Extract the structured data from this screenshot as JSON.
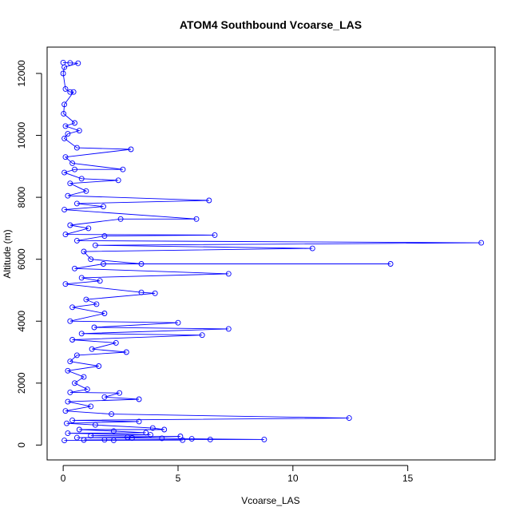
{
  "chart_data": {
    "type": "scatter",
    "title": "ATOM4 Southbound Vcoarse_LAS",
    "xlabel": "Vcoarse_LAS",
    "ylabel": "Altitude (m)",
    "xlim": [
      -0.7,
      18.8
    ],
    "ylim": [
      -480,
      12850
    ],
    "x_ticks": [
      0,
      5,
      10,
      15
    ],
    "y_ticks": [
      0,
      2000,
      4000,
      6000,
      8000,
      10000,
      12000
    ],
    "grid": false,
    "legend": "none",
    "color": "#0000ff",
    "series": [
      {
        "points": [
          [
            0.0,
            12350
          ],
          [
            0.3,
            12340
          ],
          [
            0.65,
            12330
          ],
          [
            0.05,
            12200
          ],
          [
            0.0,
            12000
          ],
          [
            0.1,
            11500
          ],
          [
            0.3,
            11400
          ],
          [
            0.45,
            11400
          ],
          [
            0.05,
            11000
          ],
          [
            0.02,
            10700
          ],
          [
            0.5,
            10400
          ],
          [
            0.1,
            10300
          ],
          [
            0.7,
            10150
          ],
          [
            0.2,
            10050
          ],
          [
            0.05,
            9900
          ],
          [
            0.6,
            9600
          ],
          [
            2.95,
            9550
          ],
          [
            0.1,
            9300
          ],
          [
            0.4,
            9100
          ],
          [
            2.6,
            8900
          ],
          [
            0.5,
            8900
          ],
          [
            0.05,
            8800
          ],
          [
            0.8,
            8600
          ],
          [
            2.4,
            8550
          ],
          [
            0.3,
            8450
          ],
          [
            1.0,
            8200
          ],
          [
            0.2,
            8050
          ],
          [
            6.35,
            7900
          ],
          [
            0.6,
            7800
          ],
          [
            1.75,
            7700
          ],
          [
            0.05,
            7600
          ],
          [
            5.8,
            7300
          ],
          [
            2.5,
            7300
          ],
          [
            0.3,
            7100
          ],
          [
            1.1,
            7000
          ],
          [
            0.1,
            6800
          ],
          [
            6.6,
            6780
          ],
          [
            1.8,
            6750
          ],
          [
            0.6,
            6600
          ],
          [
            18.2,
            6530
          ],
          [
            1.4,
            6450
          ],
          [
            10.85,
            6350
          ],
          [
            0.9,
            6250
          ],
          [
            1.2,
            6000
          ],
          [
            3.4,
            5850
          ],
          [
            14.25,
            5850
          ],
          [
            1.75,
            5850
          ],
          [
            0.5,
            5700
          ],
          [
            7.2,
            5530
          ],
          [
            0.8,
            5400
          ],
          [
            1.6,
            5300
          ],
          [
            0.1,
            5200
          ],
          [
            3.4,
            4930
          ],
          [
            4.0,
            4900
          ],
          [
            1.0,
            4700
          ],
          [
            1.45,
            4550
          ],
          [
            0.4,
            4450
          ],
          [
            1.8,
            4250
          ],
          [
            0.3,
            4000
          ],
          [
            5.0,
            3950
          ],
          [
            1.35,
            3800
          ],
          [
            7.2,
            3750
          ],
          [
            0.8,
            3600
          ],
          [
            6.05,
            3550
          ],
          [
            0.4,
            3400
          ],
          [
            2.3,
            3300
          ],
          [
            1.25,
            3100
          ],
          [
            2.75,
            3000
          ],
          [
            0.6,
            2900
          ],
          [
            0.3,
            2700
          ],
          [
            1.55,
            2550
          ],
          [
            0.2,
            2400
          ],
          [
            0.9,
            2200
          ],
          [
            0.5,
            2000
          ],
          [
            1.05,
            1800
          ],
          [
            0.3,
            1700
          ],
          [
            2.45,
            1680
          ],
          [
            1.8,
            1550
          ],
          [
            3.3,
            1480
          ],
          [
            0.2,
            1400
          ],
          [
            1.2,
            1250
          ],
          [
            0.1,
            1100
          ],
          [
            2.1,
            1000
          ],
          [
            12.45,
            870
          ],
          [
            0.4,
            800
          ],
          [
            3.3,
            760
          ],
          [
            0.15,
            700
          ],
          [
            1.4,
            650
          ],
          [
            3.9,
            550
          ],
          [
            4.4,
            500
          ],
          [
            0.7,
            500
          ],
          [
            2.2,
            450
          ],
          [
            3.6,
            400
          ],
          [
            0.2,
            380
          ],
          [
            3.8,
            330
          ],
          [
            1.2,
            300
          ],
          [
            5.1,
            280
          ],
          [
            2.8,
            250
          ],
          [
            0.6,
            240
          ],
          [
            3.0,
            230
          ],
          [
            4.3,
            220
          ],
          [
            5.6,
            200
          ],
          [
            8.75,
            180
          ],
          [
            6.4,
            180
          ],
          [
            1.8,
            170
          ],
          [
            0.9,
            165
          ],
          [
            5.2,
            160
          ],
          [
            2.2,
            155
          ],
          [
            0.05,
            150
          ]
        ]
      }
    ]
  }
}
